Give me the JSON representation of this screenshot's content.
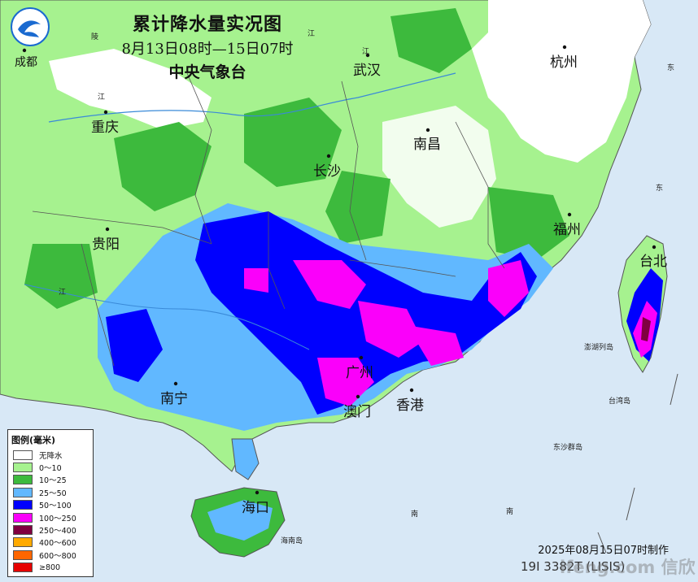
{
  "title": {
    "main": "累计降水量实况图",
    "period": "8月13日08时—15日07时",
    "agency": "中央气象台"
  },
  "colors": {
    "sea": "#d8e8f6",
    "land_none": "#ffffff",
    "r0_10": "#a6f28f",
    "r10_25": "#3dba3d",
    "r25_50": "#61b8ff",
    "r50_100": "#0000fe",
    "r100_250": "#fa00fa",
    "r250_400": "#800040",
    "r400_600": "#ffaa00",
    "r600_800": "#ff6600",
    "r800": "#e60000"
  },
  "cities": [
    {
      "name": "成都",
      "big": false
    },
    {
      "name": "重庆",
      "big": true
    },
    {
      "name": "武汉",
      "big": true
    },
    {
      "name": "杭州",
      "big": true
    },
    {
      "name": "长沙",
      "big": true
    },
    {
      "name": "南昌",
      "big": true
    },
    {
      "name": "贵阳",
      "big": true
    },
    {
      "name": "福州",
      "big": true
    },
    {
      "name": "台北",
      "big": true
    },
    {
      "name": "南宁",
      "big": true
    },
    {
      "name": "广州",
      "big": true
    },
    {
      "name": "澳门",
      "big": true
    },
    {
      "name": "香港",
      "big": true
    },
    {
      "name": "海口",
      "big": true
    }
  ],
  "small_labels": [
    "澎湖列岛",
    "台湾岛",
    "东沙群岛",
    "海南岛",
    "南",
    "南",
    "东",
    "东",
    "江",
    "江",
    "江",
    "陵",
    "江"
  ],
  "legend": {
    "title": "图例(毫米)",
    "items": [
      {
        "label": "无降水",
        "color": "#ffffff"
      },
      {
        "label": "0～10",
        "color": "#a6f28f"
      },
      {
        "label": "10～25",
        "color": "#3dba3d"
      },
      {
        "label": "25～50",
        "color": "#61b8ff"
      },
      {
        "label": "50～100",
        "color": "#0000fe"
      },
      {
        "label": "100～250",
        "color": "#fa00fa"
      },
      {
        "label": "250～400",
        "color": "#800040"
      },
      {
        "label": "400～600",
        "color": "#ffaa00"
      },
      {
        "label": "600～800",
        "color": "#ff6600"
      },
      {
        "label": "≥800",
        "color": "#e60000"
      }
    ]
  },
  "footer": {
    "made": "2025年08月15日07时制作",
    "code": "19I 3382T (LISIS)",
    "watermark": "ifeng.com 信欣"
  }
}
